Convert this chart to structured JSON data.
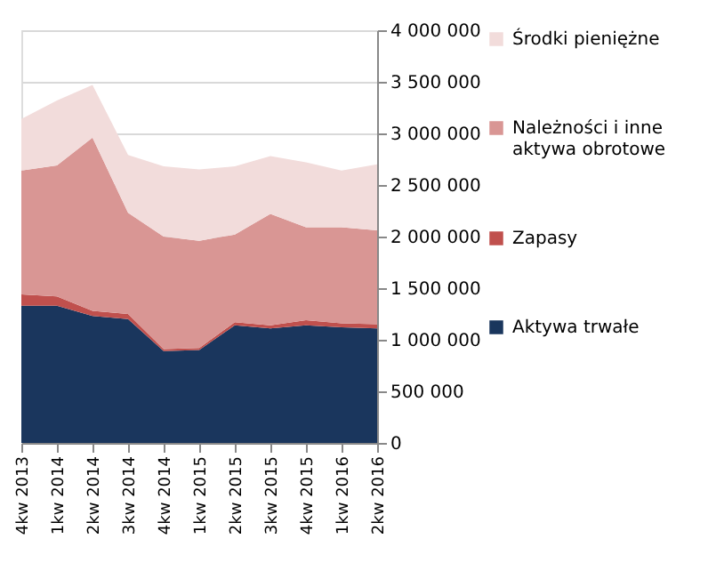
{
  "chart_data": {
    "type": "area",
    "stacked": true,
    "categories": [
      "4kw 2013",
      "1kw 2014",
      "2kw 2014",
      "3kw 2014",
      "4kw 2014",
      "1kw 2015",
      "2kw 2015",
      "3kw 2015",
      "4kw 2015",
      "1kw 2016",
      "2kw 2016"
    ],
    "series": [
      {
        "name": "Aktywa trwałe",
        "color": "#1a365d",
        "values": [
          1330000,
          1330000,
          1230000,
          1200000,
          890000,
          900000,
          1140000,
          1110000,
          1140000,
          1120000,
          1110000
        ]
      },
      {
        "name": "Zapasy",
        "color": "#c0504d",
        "values": [
          110000,
          90000,
          50000,
          50000,
          20000,
          20000,
          30000,
          30000,
          50000,
          40000,
          40000
        ]
      },
      {
        "name": "Należności i inne aktywa obrotowe",
        "color": "#d99694",
        "values": [
          1200000,
          1270000,
          1680000,
          980000,
          1090000,
          1040000,
          850000,
          1080000,
          900000,
          930000,
          910000
        ]
      },
      {
        "name": "Środki pieniężne",
        "color": "#f2dcdb",
        "values": [
          500000,
          630000,
          510000,
          560000,
          680000,
          690000,
          660000,
          560000,
          630000,
          550000,
          640000
        ]
      }
    ],
    "ylim": [
      0,
      4000000
    ],
    "yticks": [
      {
        "value": 0,
        "label": "0"
      },
      {
        "value": 500000,
        "label": "500 000"
      },
      {
        "value": 1000000,
        "label": "1 000 000"
      },
      {
        "value": 1500000,
        "label": "1 500 000"
      },
      {
        "value": 2000000,
        "label": "2 000 000"
      },
      {
        "value": 2500000,
        "label": "2 500 000"
      },
      {
        "value": 3000000,
        "label": "3 000 000"
      },
      {
        "value": 3500000,
        "label": "3 500 000"
      },
      {
        "value": 4000000,
        "label": "4 000 000"
      }
    ],
    "grid": "y",
    "legend": "right"
  }
}
